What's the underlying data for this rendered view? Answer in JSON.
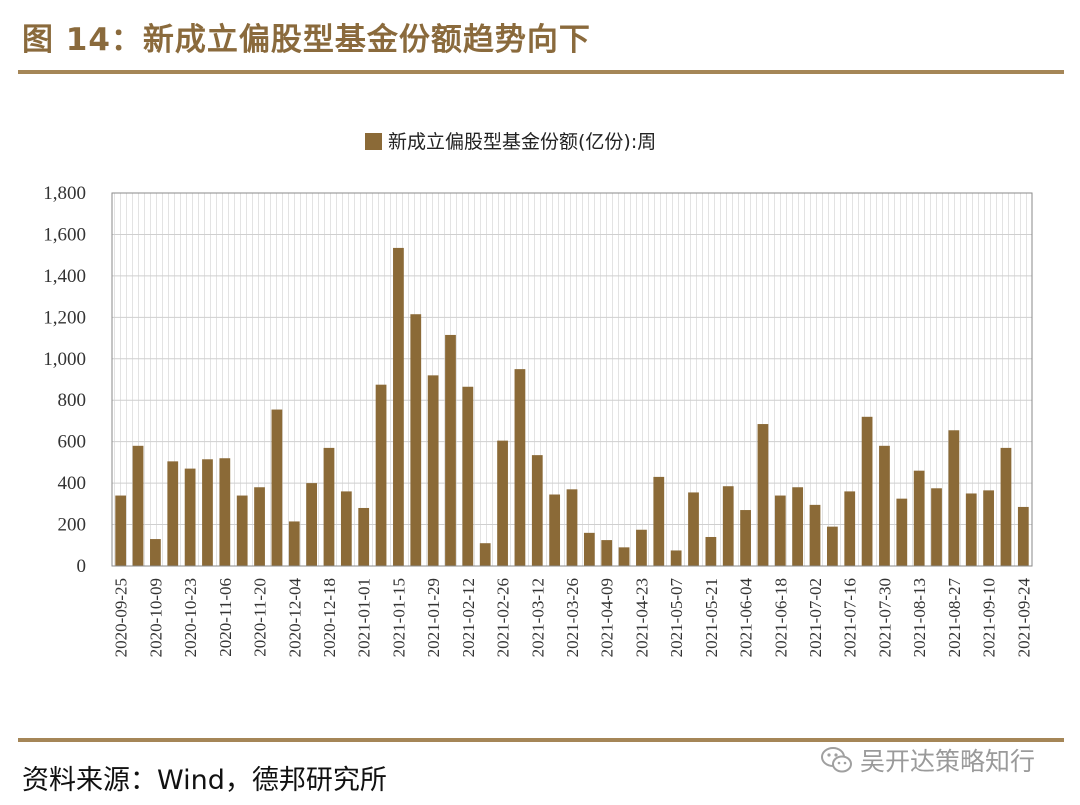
{
  "figure": {
    "title": "图 14：新成立偏股型基金份额趋势向下",
    "source": "资料来源：Wind，德邦研究所",
    "watermark_text": "吴开达策略知行",
    "watermark_icon": "wechat-icon"
  },
  "colors": {
    "bar": "#8b6a37",
    "rule": "#a58657",
    "title": "#8a6a3c",
    "grid_hatch": "#d4d4d4"
  },
  "chart_data": {
    "type": "bar",
    "title": "",
    "xlabel": "",
    "ylabel": "",
    "ylim": [
      0,
      1800
    ],
    "yticks": [
      "0",
      "200",
      "400",
      "600",
      "800",
      "1,000",
      "1,200",
      "1,400",
      "1,600",
      "1,800"
    ],
    "grid": true,
    "legend": {
      "placement": "top-center",
      "entries": [
        "新成立偏股型基金份额(亿份):周"
      ]
    },
    "x_tick_labels": [
      "2020-09-25",
      "2020-10-09",
      "2020-10-23",
      "2020-11-06",
      "2020-11-20",
      "2020-12-04",
      "2020-12-18",
      "2021-01-01",
      "2021-01-15",
      "2021-01-29",
      "2021-02-12",
      "2021-02-26",
      "2021-03-12",
      "2021-03-26",
      "2021-04-09",
      "2021-04-23",
      "2021-05-07",
      "2021-05-21",
      "2021-06-04",
      "2021-06-18",
      "2021-07-02",
      "2021-07-16",
      "2021-07-30",
      "2021-08-13",
      "2021-08-27",
      "2021-09-10",
      "2021-09-24"
    ],
    "series": [
      {
        "name": "新成立偏股型基金份额(亿份):周",
        "values": [
          340,
          580,
          130,
          505,
          470,
          515,
          520,
          340,
          380,
          755,
          215,
          400,
          570,
          360,
          280,
          875,
          1535,
          1215,
          920,
          1115,
          865,
          110,
          605,
          950,
          535,
          345,
          370,
          160,
          125,
          90,
          175,
          430,
          75,
          355,
          140,
          385,
          270,
          685,
          340,
          380,
          295,
          190,
          360,
          720,
          580,
          325,
          460,
          375,
          655,
          350,
          365,
          570,
          285
        ]
      }
    ]
  }
}
